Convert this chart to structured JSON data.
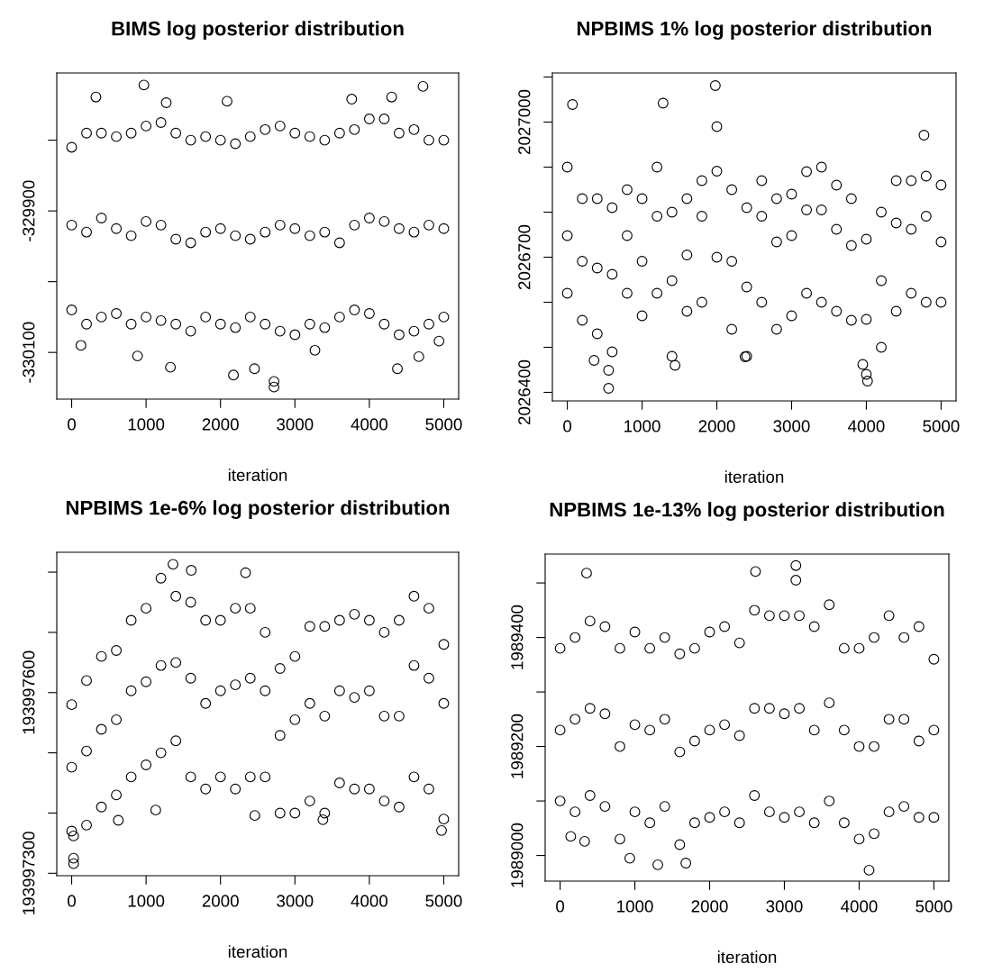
{
  "chart_data": [
    {
      "type": "scatter",
      "title": "BIMS log posterior distribution",
      "xlabel": "iteration",
      "marker": "circle",
      "xlim": [
        -200,
        5200
      ],
      "xticks": [
        0,
        1000,
        2000,
        3000,
        4000,
        5000
      ],
      "ylim": [
        -330166,
        -329705
      ],
      "yticks": [
        {
          "value": -330100,
          "label": "-330100"
        },
        {
          "value": -330000,
          "label": null
        },
        {
          "value": -329900,
          "label": "-329900"
        },
        {
          "value": -329800,
          "label": null
        }
      ],
      "series": [
        {
          "color": "#000000",
          "x": [
            0,
            200,
            400,
            600,
            800,
            1000,
            1200,
            1400,
            1600,
            1800,
            2000,
            2200,
            2400,
            2600,
            2800,
            3000,
            3200,
            3400,
            3600,
            3800,
            4000,
            4200,
            4400,
            4600,
            4800,
            5000,
            0,
            200,
            400,
            600,
            800,
            1000,
            1200,
            1400,
            1600,
            1800,
            2000,
            2200,
            2400,
            2600,
            2800,
            3000,
            3200,
            3400,
            3600,
            3800,
            4000,
            4200,
            4400,
            4600,
            4800,
            5000,
            0,
            200,
            400,
            600,
            800,
            1000,
            1200,
            1400,
            1600,
            1800,
            2000,
            2200,
            2400,
            2600,
            2800,
            3000,
            3200,
            3400,
            3600,
            3800,
            4000,
            4200,
            4400,
            4600,
            4800,
            5000,
            971,
            326,
            4721,
            4300,
            3763,
            2088,
            1271,
            2719,
            2719,
            2174,
            4377,
            1327,
            4665,
            2457,
            125,
            885,
            3269,
            4936
          ],
          "values": [
            -329810,
            -329790,
            -329790,
            -329795,
            -329790,
            -329780,
            -329775,
            -329790,
            -329800,
            -329795,
            -329800,
            -329805,
            -329795,
            -329785,
            -329780,
            -329790,
            -329795,
            -329800,
            -329790,
            -329785,
            -329770,
            -329770,
            -329790,
            -329785,
            -329800,
            -329800,
            -330040,
            -330060,
            -330050,
            -330045,
            -330060,
            -330050,
            -330055,
            -330060,
            -330070,
            -330050,
            -330060,
            -330065,
            -330050,
            -330060,
            -330070,
            -330075,
            -330060,
            -330065,
            -330050,
            -330040,
            -330045,
            -330060,
            -330075,
            -330070,
            -330060,
            -330050,
            -329920,
            -329930,
            -329910,
            -329925,
            -329935,
            -329915,
            -329920,
            -329940,
            -329945,
            -329930,
            -329925,
            -329935,
            -329940,
            -329930,
            -329920,
            -329925,
            -329935,
            -329930,
            -329945,
            -329920,
            -329910,
            -329915,
            -329925,
            -329930,
            -329920,
            -329925,
            -329722,
            -329739,
            -329724,
            -329739,
            -329742,
            -329745,
            -329747,
            -330149,
            -330141,
            -330132,
            -330123,
            -330121,
            -330106,
            -330123,
            -330090,
            -330105,
            -330097,
            -330084
          ]
        }
      ]
    },
    {
      "type": "scatter",
      "title": "NPBIMS 1% log posterior distribution",
      "xlabel": "iteration",
      "marker": "circle",
      "xlim": [
        -200,
        5200
      ],
      "xticks": [
        0,
        1000,
        2000,
        3000,
        4000,
        5000
      ],
      "ylim": [
        2026381,
        2027109
      ],
      "yticks": [
        2026400,
        {
          "value": 2026500,
          "label": null
        },
        {
          "value": 2026600,
          "label": null
        },
        2026700,
        {
          "value": 2026800,
          "label": null
        },
        {
          "value": 2026900,
          "label": null
        },
        2027000,
        {
          "value": 2027100,
          "label": null
        }
      ],
      "series": [
        {
          "color": "#000000",
          "x": [
            0,
            200,
            400,
            600,
            800,
            1000,
            1200,
            1400,
            1600,
            1800,
            2000,
            2200,
            2400,
            2600,
            2800,
            3000,
            3200,
            3400,
            3600,
            3800,
            4000,
            4200,
            4400,
            4600,
            4800,
            5000,
            0,
            200,
            400,
            600,
            800,
            1000,
            1200,
            1400,
            1600,
            1800,
            2000,
            2200,
            2400,
            2600,
            2800,
            3000,
            3200,
            3400,
            3600,
            3800,
            4000,
            4200,
            4400,
            4600,
            4800,
            5000,
            0,
            200,
            400,
            600,
            800,
            1000,
            1200,
            1400,
            1600,
            1800,
            2000,
            2200,
            2400,
            2600,
            2800,
            3000,
            3200,
            3400,
            3600,
            3800,
            4000,
            4200,
            4400,
            4600,
            4800,
            5000,
            1980,
            69,
            1281,
            4771,
            552,
            552,
            358,
            1441,
            4016,
            3952,
            2377
          ],
          "values": [
            2026748,
            2026691,
            2026676,
            2026662,
            2026748,
            2026691,
            2026791,
            2026648,
            2026705,
            2026791,
            2026891,
            2026691,
            2026634,
            2026791,
            2026734,
            2026748,
            2026805,
            2026805,
            2026762,
            2026726,
            2026562,
            2026648,
            2026776,
            2026762,
            2026791,
            2026734,
            2026900,
            2026830,
            2026830,
            2026810,
            2026850,
            2026830,
            2026900,
            2026800,
            2026830,
            2026870,
            2026990,
            2026850,
            2026810,
            2026870,
            2026830,
            2026840,
            2026890,
            2026900,
            2026860,
            2026830,
            2026740,
            2026800,
            2026870,
            2026870,
            2026880,
            2026860,
            2026620,
            2026560,
            2026530,
            2026490,
            2026620,
            2026570,
            2026620,
            2026480,
            2026580,
            2026600,
            2026700,
            2026540,
            2026480,
            2026600,
            2026540,
            2026570,
            2026620,
            2026600,
            2026580,
            2026560,
            2026440,
            2026500,
            2026580,
            2026620,
            2026600,
            2026600,
            2027081,
            2027039,
            2027042,
            2026971,
            2026409,
            2026449,
            2026471,
            2026460,
            2026425,
            2026462,
            2026479
          ]
        }
      ]
    },
    {
      "type": "scatter",
      "title": "NPBIMS 1e-6% log posterior distribution",
      "xlabel": "iteration",
      "marker": "circle",
      "xlim": [
        -200,
        5200
      ],
      "xticks": [
        0,
        1000,
        2000,
        3000,
        4000,
        5000
      ],
      "ylim": [
        193997296,
        193997833
      ],
      "yticks": [
        193997300,
        {
          "value": 193997400,
          "label": null
        },
        {
          "value": 193997500,
          "label": null
        },
        193997600,
        {
          "value": 193997700,
          "label": null
        },
        {
          "value": 193997800,
          "label": null
        }
      ],
      "series": [
        {
          "color": "#000000",
          "x": [
            0,
            200,
            400,
            600,
            800,
            1000,
            1200,
            1400,
            1600,
            1800,
            2000,
            2200,
            2400,
            2600,
            2800,
            3000,
            3200,
            3400,
            3600,
            3800,
            4000,
            4200,
            4400,
            4600,
            4800,
            5000,
            0,
            200,
            400,
            600,
            800,
            1000,
            1200,
            1400,
            1600,
            1800,
            2000,
            2200,
            2400,
            2600,
            2800,
            3000,
            3200,
            3400,
            3600,
            3800,
            4000,
            4200,
            4400,
            4600,
            4800,
            5000,
            0,
            200,
            400,
            600,
            800,
            1000,
            1200,
            1400,
            1600,
            1800,
            2000,
            2200,
            2400,
            2600,
            2800,
            3000,
            3200,
            3400,
            3600,
            3800,
            4000,
            4200,
            4400,
            4600,
            4800,
            5000,
            1362,
            1607,
            2337,
            26,
            26,
            26,
            4970,
            3376,
            627,
            2461,
            1130
          ],
          "values": [
            193997476,
            193997503,
            193997539,
            193997555,
            193997603,
            193997618,
            193997645,
            193997650,
            193997624,
            193997582,
            193997603,
            193997613,
            193997624,
            193997603,
            193997529,
            193997555,
            193997582,
            193997561,
            193997603,
            193997592,
            193997603,
            193997561,
            193997561,
            193997645,
            193997624,
            193997582,
            193997580,
            193997620,
            193997660,
            193997670,
            193997720,
            193997740,
            193997790,
            193997760,
            193997750,
            193997720,
            193997720,
            193997740,
            193997740,
            193997700,
            193997640,
            193997660,
            193997710,
            193997710,
            193997720,
            193997730,
            193997720,
            193997700,
            193997720,
            193997760,
            193997740,
            193997680,
            193997370,
            193997380,
            193997410,
            193997430,
            193997460,
            193997480,
            193997500,
            193997520,
            193997460,
            193997440,
            193997460,
            193997440,
            193997460,
            193997460,
            193997400,
            193997400,
            193997420,
            193997400,
            193997450,
            193997440,
            193997440,
            193997420,
            193997410,
            193997460,
            193997440,
            193997390,
            193997813,
            193997803,
            193997799,
            193997316,
            193997325,
            193997362,
            193997371,
            193997389,
            193997388,
            193997396,
            193997405
          ]
        }
      ]
    },
    {
      "type": "scatter",
      "title": "NPBIMS 1e-13% log posterior distribution",
      "xlabel": "iteration",
      "marker": "circle",
      "xlim": [
        -200,
        5200
      ],
      "xticks": [
        0,
        1000,
        2000,
        3000,
        4000,
        5000
      ],
      "ylim": [
        1988953,
        1989553
      ],
      "yticks": [
        1989000,
        {
          "value": 1989100,
          "label": null
        },
        1989200,
        {
          "value": 1989300,
          "label": null
        },
        1989400,
        {
          "value": 1989500,
          "label": null
        }
      ],
      "series": [
        {
          "color": "#000000",
          "x": [
            0,
            200,
            400,
            600,
            800,
            1000,
            1200,
            1400,
            1600,
            1800,
            2000,
            2200,
            2400,
            2600,
            2800,
            3000,
            3200,
            3400,
            3600,
            3800,
            4000,
            4200,
            4400,
            4600,
            4800,
            5000,
            0,
            200,
            400,
            600,
            800,
            1000,
            1200,
            1400,
            1600,
            1800,
            2000,
            2200,
            2400,
            2600,
            2800,
            3000,
            3200,
            3400,
            3600,
            3800,
            4000,
            4200,
            4400,
            4600,
            4800,
            5000,
            0,
            200,
            400,
            600,
            800,
            1000,
            1200,
            1400,
            1600,
            1800,
            2000,
            2200,
            2400,
            2600,
            2800,
            3000,
            3200,
            3400,
            3600,
            3800,
            4000,
            4200,
            4400,
            4600,
            4800,
            5000,
            354,
            2614,
            3154,
            3154,
            4133,
            1307,
            1682,
            932,
            142,
            328
          ],
          "values": [
            1989230,
            1989250,
            1989270,
            1989260,
            1989200,
            1989240,
            1989230,
            1989250,
            1989190,
            1989210,
            1989230,
            1989240,
            1989220,
            1989270,
            1989270,
            1989260,
            1989270,
            1989230,
            1989280,
            1989230,
            1989200,
            1989200,
            1989250,
            1989250,
            1989210,
            1989230,
            1989380,
            1989400,
            1989430,
            1989420,
            1989380,
            1989410,
            1989380,
            1989400,
            1989370,
            1989380,
            1989410,
            1989420,
            1989390,
            1989450,
            1989440,
            1989440,
            1989440,
            1989420,
            1989460,
            1989380,
            1989380,
            1989400,
            1989440,
            1989400,
            1989420,
            1989360,
            1989100,
            1989080,
            1989110,
            1989090,
            1989030,
            1989080,
            1989060,
            1989090,
            1989020,
            1989060,
            1989070,
            1989080,
            1989060,
            1989110,
            1989080,
            1989070,
            1989080,
            1989060,
            1989100,
            1989060,
            1989030,
            1989040,
            1989080,
            1989090,
            1989070,
            1989070,
            1989518,
            1989521,
            1989532,
            1989505,
            1988973,
            1988983,
            1988986,
            1988995,
            1989035,
            1989026
          ]
        }
      ]
    }
  ]
}
